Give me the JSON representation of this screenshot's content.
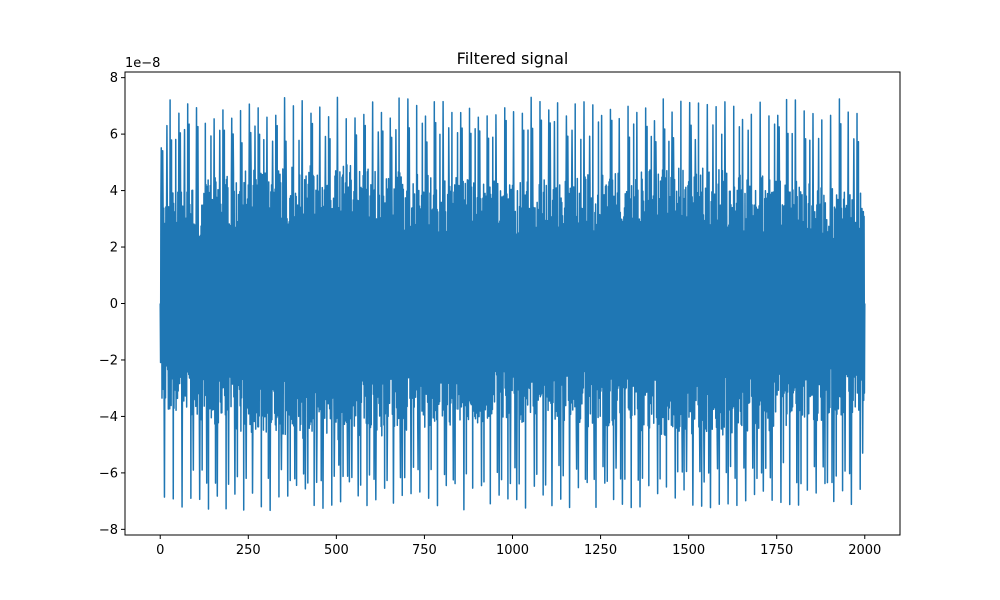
{
  "chart_data": {
    "type": "line",
    "title": "Filtered signal",
    "xlabel": "",
    "ylabel": "",
    "y_offset_label": "1e−8",
    "y_scale_exponent": -8,
    "xlim": [
      -100,
      2100
    ],
    "ylim": [
      -8.2,
      8.2
    ],
    "x_ticks": [
      0,
      250,
      500,
      750,
      1000,
      1250,
      1500,
      1750,
      2000
    ],
    "x_tick_labels": [
      "0",
      "250",
      "500",
      "750",
      "1000",
      "1250",
      "1500",
      "1750",
      "2000"
    ],
    "y_ticks": [
      -8,
      -6,
      -4,
      -2,
      0,
      2,
      4,
      6,
      8
    ],
    "y_tick_labels": [
      "−8",
      "−6",
      "−4",
      "−2",
      "0",
      "2",
      "4",
      "6",
      "8"
    ],
    "grid": false,
    "legend": "none",
    "series": [
      {
        "color": "#1f77b4",
        "n_points": 2000,
        "envelope_peak_positive": [
          [
            0,
            5.8
          ],
          [
            20,
            7.3
          ],
          [
            100,
            7.2
          ],
          [
            250,
            7.3
          ],
          [
            500,
            7.4
          ],
          [
            750,
            7.3
          ],
          [
            1000,
            7.4
          ],
          [
            1250,
            7.4
          ],
          [
            1500,
            7.3
          ],
          [
            1750,
            7.3
          ],
          [
            1980,
            7.4
          ],
          [
            2000,
            0
          ]
        ],
        "envelope_peak_negative": [
          [
            0,
            -6.5
          ],
          [
            20,
            -7.4
          ],
          [
            100,
            -7.3
          ],
          [
            250,
            -7.4
          ],
          [
            500,
            -7.3
          ],
          [
            750,
            -7.4
          ],
          [
            1000,
            -7.4
          ],
          [
            1250,
            -7.3
          ],
          [
            1500,
            -7.3
          ],
          [
            1750,
            -7.2
          ],
          [
            1980,
            -7.4
          ],
          [
            2000,
            -5.8
          ]
        ],
        "envelope_dense_positive": [
          [
            0,
            3.9
          ],
          [
            250,
            4.8
          ],
          [
            500,
            5.0
          ],
          [
            750,
            4.6
          ],
          [
            1000,
            4.3
          ],
          [
            1250,
            4.6
          ],
          [
            1500,
            4.9
          ],
          [
            1750,
            4.5
          ],
          [
            2000,
            3.9
          ]
        ],
        "envelope_dense_negative": [
          [
            0,
            -3.8
          ],
          [
            250,
            -4.6
          ],
          [
            500,
            -4.9
          ],
          [
            750,
            -4.5
          ],
          [
            1000,
            -4.2
          ],
          [
            1250,
            -4.4
          ],
          [
            1500,
            -4.8
          ],
          [
            1750,
            -4.5
          ],
          [
            2000,
            -3.9
          ]
        ]
      }
    ]
  }
}
